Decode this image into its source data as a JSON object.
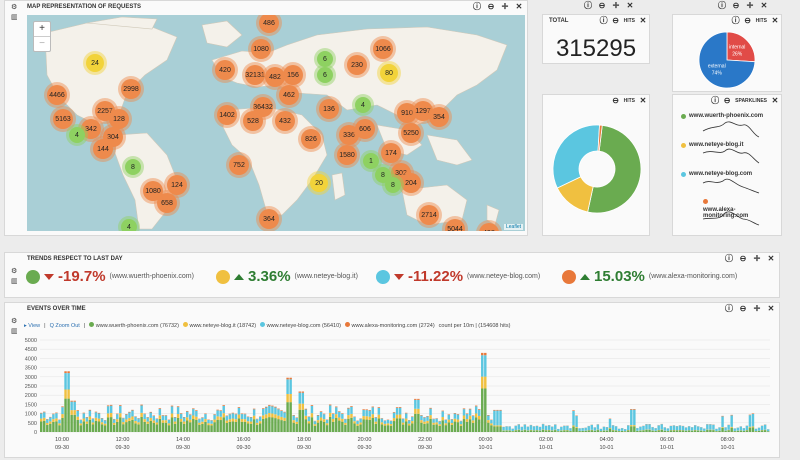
{
  "map_panel": {
    "title": "MAP REPRESENTATION OF REQUESTS",
    "zoom_in": "+",
    "zoom_out": "−",
    "attribution": "Leaflet",
    "clusters": [
      {
        "label": "486",
        "kind": "or"
      },
      {
        "label": "1080",
        "kind": "or"
      },
      {
        "label": "1066",
        "kind": "or"
      },
      {
        "label": "24",
        "kind": "yl"
      },
      {
        "label": "6",
        "kind": "gr"
      },
      {
        "label": "230",
        "kind": "or"
      },
      {
        "label": "420",
        "kind": "or"
      },
      {
        "label": "32131",
        "kind": "or"
      },
      {
        "label": "482",
        "kind": "or"
      },
      {
        "label": "156",
        "kind": "or"
      },
      {
        "label": "80",
        "kind": "yl"
      },
      {
        "label": "4466",
        "kind": "or"
      },
      {
        "label": "2998",
        "kind": "or"
      },
      {
        "label": "462",
        "kind": "or"
      },
      {
        "label": "36432",
        "kind": "or"
      },
      {
        "label": "4",
        "kind": "gr"
      },
      {
        "label": "5163",
        "kind": "or"
      },
      {
        "label": "2257",
        "kind": "or"
      },
      {
        "label": "1402",
        "kind": "or"
      },
      {
        "label": "528",
        "kind": "or"
      },
      {
        "label": "136",
        "kind": "or"
      },
      {
        "label": "910",
        "kind": "or"
      },
      {
        "label": "1297",
        "kind": "or"
      },
      {
        "label": "354",
        "kind": "or"
      },
      {
        "label": "342",
        "kind": "or"
      },
      {
        "label": "128",
        "kind": "or"
      },
      {
        "label": "432",
        "kind": "or"
      },
      {
        "label": "4",
        "kind": "gr"
      },
      {
        "label": "304",
        "kind": "or"
      },
      {
        "label": "826",
        "kind": "or"
      },
      {
        "label": "336",
        "kind": "or"
      },
      {
        "label": "5250",
        "kind": "or"
      },
      {
        "label": "144",
        "kind": "or"
      },
      {
        "label": "1580",
        "kind": "or"
      },
      {
        "label": "174",
        "kind": "or"
      },
      {
        "label": "8",
        "kind": "gr"
      },
      {
        "label": "752",
        "kind": "or"
      },
      {
        "label": "302",
        "kind": "or"
      },
      {
        "label": "8",
        "kind": "gr"
      },
      {
        "label": "20",
        "kind": "yl"
      },
      {
        "label": "204",
        "kind": "or"
      },
      {
        "label": "124",
        "kind": "or"
      },
      {
        "label": "1080",
        "kind": "or"
      },
      {
        "label": "658",
        "kind": "or"
      },
      {
        "label": "2714",
        "kind": "or"
      },
      {
        "label": "364",
        "kind": "or"
      },
      {
        "label": "4",
        "kind": "gr"
      },
      {
        "label": "5044",
        "kind": "or"
      },
      {
        "label": "498",
        "kind": "or"
      },
      {
        "label": "606",
        "kind": "or"
      },
      {
        "label": "6",
        "kind": "gr"
      },
      {
        "label": "1",
        "kind": "gr"
      },
      {
        "label": "8",
        "kind": "gr"
      }
    ]
  },
  "total_panel": {
    "title": "TOTAL",
    "hits_label": "HITS",
    "value": "315295"
  },
  "donut_panel": {
    "hits_label": "HITS",
    "chart_data": {
      "type": "pie",
      "values": [
        51.5,
        14.5,
        33,
        1
      ],
      "colors": [
        "#6aab50",
        "#f0c040",
        "#5bc6e0",
        "#e8783a"
      ]
    }
  },
  "pie_panel": {
    "hits_label": "HITS",
    "chart_data": {
      "type": "pie",
      "series": [
        {
          "name": "internal",
          "value": 26,
          "color": "#e14b47",
          "label": "26%"
        },
        {
          "name": "external",
          "value": 74,
          "color": "#2a78c8",
          "label": "74%"
        }
      ]
    }
  },
  "sparklines_panel": {
    "title": "SPARKLINES",
    "items": [
      {
        "name": "www.wuerth-phoenix.com",
        "color": "#6aab50"
      },
      {
        "name": "www.neteye-blog.it",
        "color": "#f0c040"
      },
      {
        "name": "www.neteye-blog.com",
        "color": "#5bc6e0"
      },
      {
        "name": "www.alexa-monitoring.com",
        "color": "#e8783a"
      }
    ]
  },
  "trends_panel": {
    "title": "TRENDS RESPECT TO LAST DAY",
    "items": [
      {
        "pct": "-19.7%",
        "dir": "down",
        "site": "(www.wuerth-phoenix.com)",
        "color": "#6aab50"
      },
      {
        "pct": "3.36%",
        "dir": "up",
        "site": "(www.neteye-blog.it)",
        "color": "#f0c040"
      },
      {
        "pct": "-11.22%",
        "dir": "down",
        "site": "(www.neteye-blog.com)",
        "color": "#5bc6e0"
      },
      {
        "pct": "15.03%",
        "dir": "up",
        "site": "(www.alexa-monitoring.com)",
        "color": "#e8783a"
      }
    ]
  },
  "events_panel": {
    "title": "EVENTS OVER TIME",
    "view_label": "▸ View",
    "zoom_out_label": "Q Zoom Out",
    "legend": [
      {
        "name": "www.wuerth-phoenix.com (76732)",
        "color": "#6aab50"
      },
      {
        "name": "www.neteye-blog.it (18742)",
        "color": "#f0c040"
      },
      {
        "name": "www.neteye-blog.com (56410)",
        "color": "#5bc6e0"
      },
      {
        "name": "www.alexa-monitoring.com (2724)",
        "color": "#e8783a"
      }
    ],
    "count_text": "count per 10m | (154608 hits)",
    "chart_data": {
      "type": "bar",
      "stacked": true,
      "ylim": [
        0,
        5000
      ],
      "yticks": [
        "0",
        "500",
        "1000",
        "1500",
        "2000",
        "2500",
        "3000",
        "3500",
        "4000",
        "4500",
        "5000"
      ],
      "xticks": [
        {
          "t": "10:00",
          "d": "09-30"
        },
        {
          "t": "12:00",
          "d": "09-30"
        },
        {
          "t": "14:00",
          "d": "09-30"
        },
        {
          "t": "16:00",
          "d": "09-30"
        },
        {
          "t": "18:00",
          "d": "09-30"
        },
        {
          "t": "20:00",
          "d": "09-30"
        },
        {
          "t": "22:00",
          "d": "09-30"
        },
        {
          "t": "00:00",
          "d": "10-01"
        },
        {
          "t": "02:00",
          "d": "10-01"
        },
        {
          "t": "04:00",
          "d": "10-01"
        },
        {
          "t": "06:00",
          "d": "10-01"
        },
        {
          "t": "08:00",
          "d": "10-01"
        }
      ],
      "series_colors": [
        "#6aab50",
        "#f0c040",
        "#5bc6e0",
        "#e8783a"
      ],
      "peaks": [
        {
          "x": 0.035,
          "v": 3300
        },
        {
          "x": 0.045,
          "v": 1700
        },
        {
          "x": 0.34,
          "v": 2950
        },
        {
          "x": 0.355,
          "v": 2200
        },
        {
          "x": 0.515,
          "v": 1800
        },
        {
          "x": 0.608,
          "v": 4300
        },
        {
          "x": 0.625,
          "v": 1200
        },
        {
          "x": 0.812,
          "v": 1250
        }
      ]
    }
  }
}
